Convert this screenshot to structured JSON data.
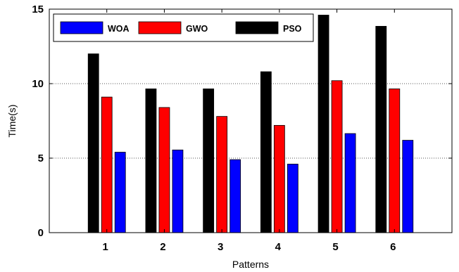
{
  "chart_data": {
    "type": "bar",
    "categories": [
      "1",
      "2",
      "3",
      "4",
      "5",
      "6"
    ],
    "series": [
      {
        "name": "PSO",
        "color": "#000000",
        "values": [
          12.0,
          9.65,
          9.65,
          10.8,
          14.6,
          13.85
        ]
      },
      {
        "name": "GWO",
        "color": "#ff0000",
        "values": [
          9.1,
          8.4,
          7.8,
          7.2,
          10.2,
          9.65
        ]
      },
      {
        "name": "WOA",
        "color": "#0000ff",
        "values": [
          5.4,
          5.55,
          4.9,
          4.6,
          6.65,
          6.2
        ]
      }
    ],
    "legend_order": [
      "WOA",
      "GWO",
      "PSO"
    ],
    "legend_position": "top-left",
    "xlabel": "Patterns",
    "ylabel": "Time(s)",
    "ylim": [
      0,
      15
    ],
    "yticks": [
      "0",
      "5",
      "10",
      "15"
    ],
    "grid": "horizontal dotted"
  }
}
